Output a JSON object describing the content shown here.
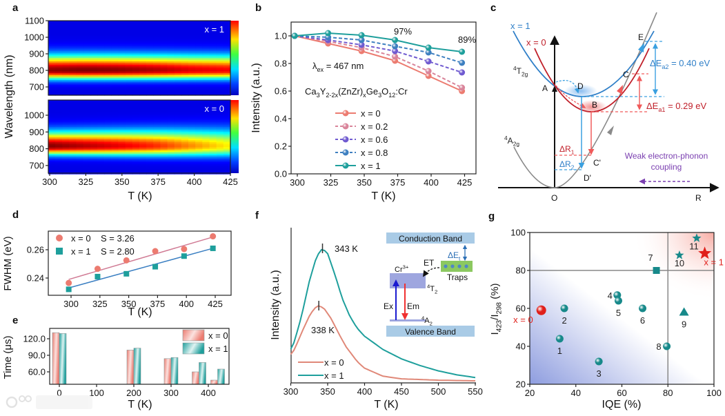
{
  "panel_labels": {
    "a": "a",
    "b": "b",
    "c": "c",
    "d": "d",
    "e": "e",
    "f": "f",
    "g": "g"
  },
  "watermark": "大数跨境",
  "chart_data": [
    {
      "id": "a",
      "type": "heatmap",
      "title": "",
      "xlabel": "T (K)",
      "ylabel": "Wavelength (nm)",
      "xlim": [
        300,
        425
      ],
      "xticks": [
        300,
        325,
        350,
        375,
        400,
        425
      ],
      "ylim": [
        650,
        1100
      ],
      "yticks_top": [
        700,
        800,
        900,
        1000,
        1100
      ],
      "yticks_bottom": [
        700,
        800,
        900,
        1000
      ],
      "colormap": "jet",
      "T": [
        298,
        323,
        348,
        373,
        398,
        423
      ],
      "panels": [
        {
          "label": "x = 1",
          "peak_wavelength_nm": 800,
          "relative_peak_intensity": [
            1.0,
            1.02,
            1.005,
            0.97,
            0.915,
            0.885
          ]
        },
        {
          "label": "x = 0",
          "peak_wavelength_nm": 815,
          "relative_peak_intensity": [
            1.0,
            0.945,
            0.89,
            0.82,
            0.71,
            0.6
          ]
        }
      ]
    },
    {
      "id": "b",
      "type": "line",
      "title": "",
      "xlabel": "T (K)",
      "ylabel": "Intensity (a.u.)",
      "xlim": [
        295,
        435
      ],
      "ylim": [
        0,
        1.1
      ],
      "xticks": [
        300,
        325,
        350,
        375,
        400,
        425
      ],
      "yticks": [
        0,
        0.2,
        0.4,
        0.6,
        0.8,
        1.0
      ],
      "ytick_labels": [
        "0.0",
        "0.2",
        "0.4",
        "0.6",
        "0.8",
        "1.0"
      ],
      "x": [
        298,
        323,
        348,
        373,
        398,
        423
      ],
      "series": [
        {
          "name": "x = 0",
          "color": "#ec7b70",
          "dashed": false,
          "values": [
            1.0,
            0.945,
            0.89,
            0.82,
            0.71,
            0.6
          ]
        },
        {
          "name": "x = 0.2",
          "color": "#d9849a",
          "dashed": true,
          "values": [
            1.0,
            0.96,
            0.915,
            0.85,
            0.745,
            0.625
          ]
        },
        {
          "name": "x = 0.6",
          "color": "#6f5ad0",
          "dashed": true,
          "values": [
            1.0,
            0.97,
            0.935,
            0.89,
            0.815,
            0.735
          ]
        },
        {
          "name": "x = 0.8",
          "color": "#3d7fc0",
          "dashed": true,
          "values": [
            1.0,
            0.99,
            0.97,
            0.925,
            0.88,
            0.805
          ]
        },
        {
          "name": "x = 1",
          "color": "#1e9f9c",
          "dashed": false,
          "values": [
            1.0,
            1.02,
            1.005,
            0.97,
            0.915,
            0.885
          ]
        }
      ],
      "annotations": {
        "pct_375": "97%",
        "pct_425": "89%",
        "excitation": "λ_{ex} = 467 nm",
        "formula": "Ca_{3}Y_{2-2x}(ZnZr)_{x}Ge_{3}O_{12}:Cr"
      },
      "legend": "center-bottom"
    },
    {
      "id": "d",
      "type": "scatter",
      "title": "",
      "xlabel": "T (K)",
      "ylabel": "FWHM (eV)",
      "xlim": [
        282,
        440
      ],
      "ylim": [
        0.228,
        0.273
      ],
      "xticks": [
        300,
        325,
        350,
        375,
        400,
        425
      ],
      "yticks": [
        0.24,
        0.26
      ],
      "ytick_labels": [
        "0.24",
        "0.26"
      ],
      "x": [
        298,
        323,
        348,
        373,
        398,
        423
      ],
      "series": [
        {
          "name": "x = 0",
          "S": "S = 3.26",
          "color": "#ec7b70",
          "marker": "circle",
          "values": [
            0.2365,
            0.2465,
            0.2525,
            0.259,
            0.2605,
            0.2695
          ],
          "fit": [
            0.239,
            0.269
          ],
          "fit_color": "#d07a94"
        },
        {
          "name": "x = 1",
          "S": "S = 2.80",
          "color": "#1e9f9c",
          "marker": "square",
          "values": [
            0.232,
            0.241,
            0.243,
            0.248,
            0.2555,
            0.261
          ],
          "fit": [
            0.233,
            0.261
          ],
          "fit_color": "#3a7fc2"
        }
      ],
      "legend": "top-left"
    },
    {
      "id": "e",
      "type": "bar",
      "title": "",
      "xlabel": "T (K)",
      "ylabel": "Time (μs)",
      "xlim": [
        -25,
        460
      ],
      "ylim": [
        37.5,
        138
      ],
      "xticks": [
        0,
        100,
        200,
        300,
        400
      ],
      "yticks": [
        60,
        90,
        120
      ],
      "ytick_labels": [
        "60.0",
        "90.0",
        "120.0"
      ],
      "categories": [
        0,
        200,
        300,
        375,
        425
      ],
      "series": [
        {
          "name": "x = 0",
          "color": "#ec7b70",
          "values": [
            131,
            99.5,
            84,
            60,
            45
          ]
        },
        {
          "name": "x = 1",
          "color": "#1e9f9c",
          "values": [
            129.5,
            103,
            86,
            77,
            65
          ]
        }
      ],
      "legend": "top-right"
    },
    {
      "id": "f",
      "type": "line",
      "title": "",
      "xlabel": "T (K)",
      "ylabel": "Intensity (a.u.)",
      "xlim": [
        300,
        550
      ],
      "xticks": [
        300,
        350,
        400,
        450,
        500,
        550
      ],
      "series": [
        {
          "name": "x = 0",
          "color": "#e08878",
          "peak_label": "338 K",
          "peak_T": 338,
          "x": [
            298,
            305,
            315,
            325,
            332,
            338,
            345,
            355,
            365,
            375,
            390,
            400,
            425,
            450,
            500,
            550
          ],
          "values": [
            0.19,
            0.24,
            0.37,
            0.49,
            0.55,
            0.57,
            0.55,
            0.47,
            0.36,
            0.26,
            0.15,
            0.1,
            0.04,
            0.02,
            0.01,
            0.005
          ]
        },
        {
          "name": "x = 1",
          "color": "#1e9f9c",
          "peak_label": "343 K",
          "peak_T": 343,
          "x": [
            298,
            305,
            315,
            325,
            335,
            343,
            350,
            360,
            370,
            380,
            390,
            400,
            425,
            450,
            475,
            500,
            525,
            550
          ],
          "values": [
            0.22,
            0.3,
            0.5,
            0.75,
            0.94,
            1.0,
            0.96,
            0.8,
            0.62,
            0.49,
            0.4,
            0.34,
            0.24,
            0.17,
            0.12,
            0.08,
            0.05,
            0.03
          ]
        }
      ],
      "inset": {
        "conduction": "Conduction Band",
        "valence": "Valence Band",
        "cr": "Cr^{3+}",
        "t2": "^{4}T_{2}",
        "a2": "^{4}A_{2}",
        "ex": "Ex",
        "em": "Em",
        "et": "ET",
        "traps": "Traps",
        "det": "ΔE_{t}"
      },
      "legend": "bottom-left"
    },
    {
      "id": "g",
      "type": "scatter",
      "title": "",
      "xlabel": "IQE (%)",
      "ylabel": "I_{423}/I_{298} (%)",
      "xlim": [
        20,
        100
      ],
      "ylim": [
        20,
        100
      ],
      "xticks": [
        20,
        40,
        60,
        80,
        100
      ],
      "yticks": [
        20,
        40,
        60,
        80,
        100
      ],
      "reference_lines": {
        "x": 80,
        "y": 80
      },
      "points": [
        {
          "label": "x = 0",
          "iqe": 25,
          "ratio": 59,
          "marker": "sphere",
          "color": "#e0201b",
          "label_color": "#e0201b"
        },
        {
          "label": "1",
          "iqe": 33,
          "ratio": 44,
          "marker": "sphere",
          "color": "#17898a",
          "label_color": "#222"
        },
        {
          "label": "2",
          "iqe": 35,
          "ratio": 60,
          "marker": "sphere",
          "color": "#17898a",
          "label_color": "#222"
        },
        {
          "label": "3",
          "iqe": 50,
          "ratio": 32,
          "marker": "sphere",
          "color": "#17898a",
          "label_color": "#222"
        },
        {
          "label": "4",
          "iqe": 58,
          "ratio": 67,
          "marker": "sphere",
          "color": "#17898a",
          "label_color": "#222"
        },
        {
          "label": "5",
          "iqe": 58.5,
          "ratio": 64,
          "marker": "sphere",
          "color": "#17898a",
          "label_color": "#222"
        },
        {
          "label": "6",
          "iqe": 69,
          "ratio": 60,
          "marker": "sphere",
          "color": "#17898a",
          "label_color": "#222"
        },
        {
          "label": "7",
          "iqe": 75,
          "ratio": 80,
          "marker": "square",
          "color": "#17898a",
          "label_color": "#222"
        },
        {
          "label": "8",
          "iqe": 79.5,
          "ratio": 40,
          "marker": "sphere",
          "color": "#17898a",
          "label_color": "#222"
        },
        {
          "label": "9",
          "iqe": 87,
          "ratio": 58,
          "marker": "triangle",
          "color": "#17898a",
          "label_color": "#222"
        },
        {
          "label": "10",
          "iqe": 85,
          "ratio": 88,
          "marker": "star",
          "color": "#17898a",
          "label_color": "#222"
        },
        {
          "label": "11",
          "iqe": 92.5,
          "ratio": 97,
          "marker": "star",
          "color": "#17898a",
          "label_color": "#222"
        },
        {
          "label": "x = 1",
          "iqe": 96,
          "ratio": 89,
          "marker": "star",
          "color": "#e0201b",
          "label_color": "#e0201b"
        }
      ]
    }
  ],
  "diagram_c": {
    "x1": "x = 1",
    "x0": "x = 0",
    "t2g": "^{4}T_{2g}",
    "a2g": "^{4}A_{2g}",
    "A": "A",
    "B": "B",
    "C": "C",
    "D": "D",
    "E": "E",
    "Cp": "C'",
    "Dp": "D'",
    "O": "O",
    "R": "R",
    "dea2": "ΔE_{a2} = 0.40 eV",
    "dea1": "ΔE_{a1} = 0.29 eV",
    "dr1": "ΔR_{1}",
    "dr2": "ΔR_{2}",
    "weak1": "Weak electron-phonon",
    "weak2": "coupling",
    "colors": {
      "x1": "#2f7fc8",
      "x0": "#c0202a",
      "blue_arrow": "#3aa0e0",
      "red_arrow": "#f05a5a",
      "purple": "#7a3fb0"
    }
  }
}
